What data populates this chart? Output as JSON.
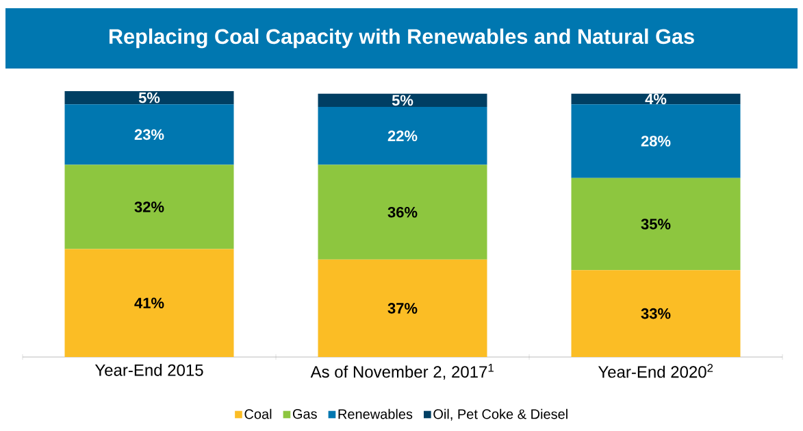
{
  "chart_data": {
    "type": "bar",
    "stacked": true,
    "title": "Replacing Coal Capacity with Renewables and Natural Gas",
    "categories": [
      "Year-End 2015",
      "As of November 2, 2017$^{1}$",
      "Year-End 2020$^{2}$"
    ],
    "series": [
      {
        "name": "Coal",
        "color": "#fbbd25",
        "values": [
          41,
          37,
          33
        ],
        "value_labels": [
          "41%",
          "37%",
          "33%"
        ]
      },
      {
        "name": "Gas",
        "color": "#8dc63f",
        "values": [
          32,
          36,
          35
        ],
        "value_labels": [
          "32%",
          "36%",
          "35%"
        ]
      },
      {
        "name": "Renewables",
        "color": "#0077b0",
        "values": [
          23,
          22,
          28
        ],
        "value_labels": [
          "23%",
          "22%",
          "28%"
        ]
      },
      {
        "name": "Oil, Pet Coke & Diesel",
        "color": "#003f63",
        "values": [
          5,
          5,
          4
        ],
        "value_labels": [
          "5%",
          "5%",
          "4%"
        ]
      }
    ],
    "legend": "bottom"
  }
}
